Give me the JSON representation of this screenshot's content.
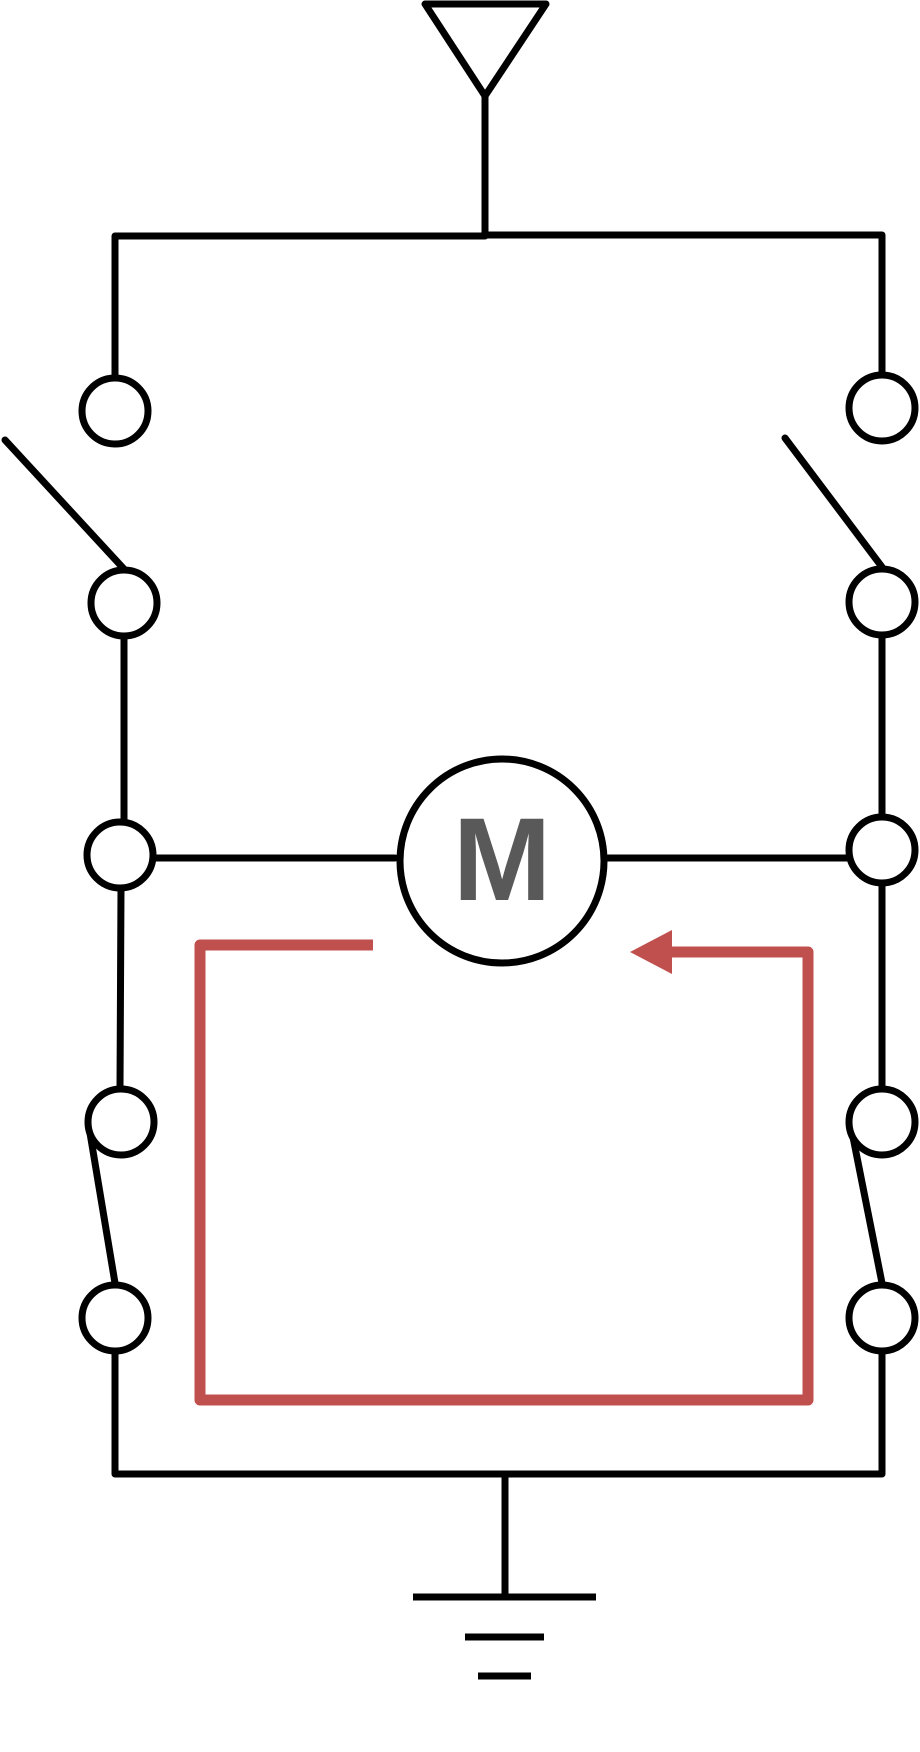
{
  "diagram": {
    "type": "H-bridge motor circuit",
    "motor": {
      "label": "M",
      "label_color": "#595959"
    },
    "colors": {
      "wire": "#000000",
      "current_path": "#C0504D"
    },
    "switches": {
      "top_left": "open",
      "top_right": "open",
      "bottom_left": "closed",
      "bottom_right": "closed"
    },
    "supply_symbol": "triangle-power-icon",
    "ground_symbol": "ground-icon",
    "current_direction": "counter-clockwise"
  }
}
